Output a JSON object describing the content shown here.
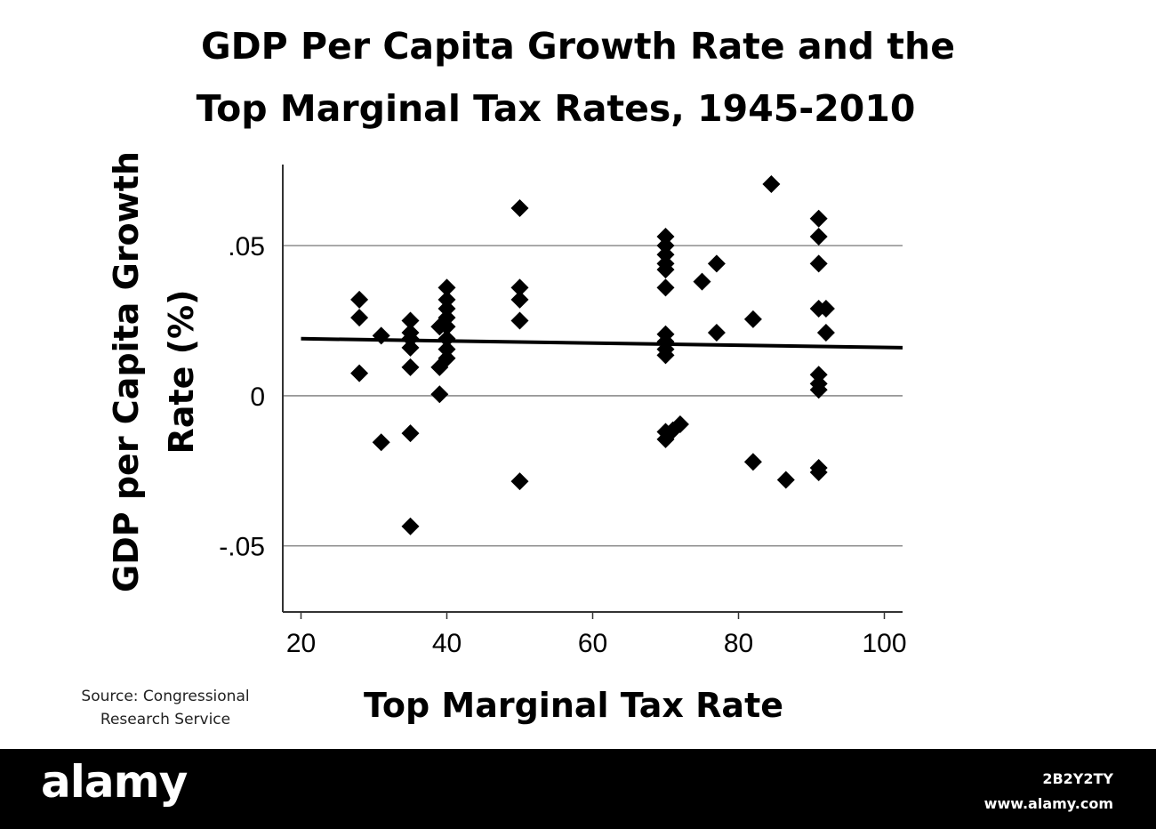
{
  "footer": {
    "brand": "alamy",
    "image_id": "2B2Y2TY",
    "url": "www.alamy.com"
  },
  "source_lines": [
    "Source: Congressional",
    "Research Service"
  ],
  "colors": {
    "marker": "#000000",
    "trend": "#000000",
    "grid": "#777777",
    "footer_bg": "#000000"
  },
  "chart_data": {
    "type": "scatter",
    "title_lines": [
      "GDP Per Capita Growth Rate and the",
      "Top Marginal Tax Rates, 1945-2010"
    ],
    "xlabel": "Top Marginal Tax Rate",
    "ylabel_lines": [
      "GDP per Capita Growth",
      "Rate (%)"
    ],
    "xlim": [
      17.5,
      102.5
    ],
    "ylim": [
      -0.072,
      0.077
    ],
    "x_ticks": [
      20,
      40,
      60,
      80,
      100
    ],
    "x_tick_labels": [
      "20",
      "40",
      "60",
      "80",
      "100"
    ],
    "y_ticks": [
      -0.05,
      0,
      0.05
    ],
    "y_tick_labels": [
      "-.05",
      "0",
      ".05"
    ],
    "grid": "horizontal",
    "marker": "diamond",
    "points": [
      [
        28,
        0.032
      ],
      [
        28,
        0.026
      ],
      [
        28,
        0.0075
      ],
      [
        31,
        0.02
      ],
      [
        31,
        -0.0155
      ],
      [
        35,
        0.025
      ],
      [
        35,
        0.021
      ],
      [
        35,
        0.019
      ],
      [
        35,
        0.016
      ],
      [
        35,
        0.0095
      ],
      [
        35,
        -0.0125
      ],
      [
        35,
        -0.0435
      ],
      [
        39,
        0.023
      ],
      [
        39,
        0.0095
      ],
      [
        39,
        0.0005
      ],
      [
        40,
        0.036
      ],
      [
        40,
        0.032
      ],
      [
        40,
        0.029
      ],
      [
        40,
        0.026
      ],
      [
        40,
        0.023
      ],
      [
        40,
        0.019
      ],
      [
        40,
        0.0155
      ],
      [
        40,
        0.0125
      ],
      [
        50,
        0.0625
      ],
      [
        50,
        0.036
      ],
      [
        50,
        0.032
      ],
      [
        50,
        0.025
      ],
      [
        50,
        -0.0285
      ],
      [
        70,
        0.053
      ],
      [
        70,
        0.05
      ],
      [
        70,
        0.047
      ],
      [
        70,
        0.044
      ],
      [
        70,
        0.042
      ],
      [
        70,
        0.036
      ],
      [
        70,
        0.0205
      ],
      [
        70,
        0.018
      ],
      [
        70,
        0.0155
      ],
      [
        70,
        0.0135
      ],
      [
        70,
        -0.012
      ],
      [
        70,
        -0.0145
      ],
      [
        71,
        -0.0115
      ],
      [
        72,
        -0.0095
      ],
      [
        75,
        0.038
      ],
      [
        77,
        0.044
      ],
      [
        77,
        0.021
      ],
      [
        82,
        0.0255
      ],
      [
        82,
        -0.022
      ],
      [
        84.5,
        0.0705
      ],
      [
        86.5,
        -0.028
      ],
      [
        91,
        0.059
      ],
      [
        91,
        0.053
      ],
      [
        91,
        0.044
      ],
      [
        91,
        0.029
      ],
      [
        91,
        0.007
      ],
      [
        91,
        0.004
      ],
      [
        91,
        0.002
      ],
      [
        91,
        -0.024
      ],
      [
        91,
        -0.0255
      ],
      [
        92,
        0.029
      ],
      [
        92,
        0.021
      ]
    ],
    "trend_line": {
      "x": [
        20,
        102.5
      ],
      "y": [
        0.019,
        0.016
      ]
    }
  }
}
